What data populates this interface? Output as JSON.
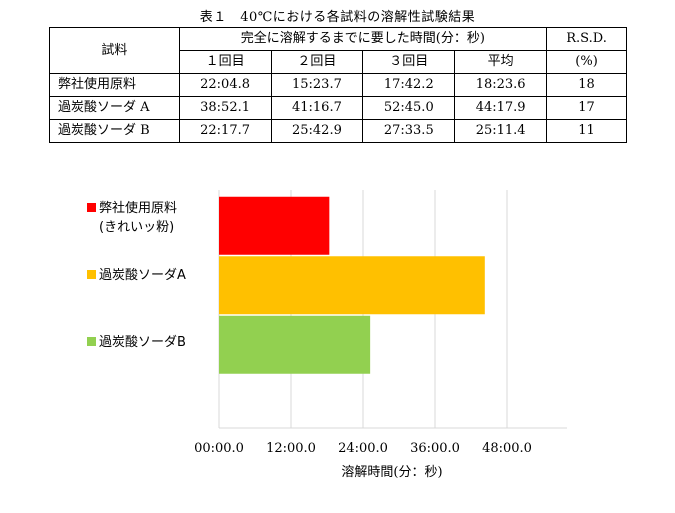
{
  "table": {
    "caption": "表１　40℃における各試料の溶解性試験結果",
    "header": {
      "sample_label": "試料",
      "time_group_label": "完全に溶解するまでに要した時間(分：秒)",
      "rsd_label": "R.S.D.",
      "rsd_unit": "(%)",
      "columns": [
        "１回目",
        "２回目",
        "３回目",
        "平均"
      ]
    },
    "rows": [
      {
        "sample": "弊社使用原料",
        "values": [
          "22:04.8",
          "15:23.7",
          "17:42.2",
          "18:23.6"
        ],
        "rsd": "18"
      },
      {
        "sample": "過炭酸ソーダ A",
        "values": [
          "38:52.1",
          "41:16.7",
          "52:45.0",
          "44:17.9"
        ],
        "rsd": "17"
      },
      {
        "sample": "過炭酸ソーダ B",
        "values": [
          "22:17.7",
          "25:42.9",
          "27:33.5",
          "25:11.4"
        ],
        "rsd": "11"
      }
    ]
  },
  "chart_data": {
    "type": "bar",
    "orientation": "horizontal",
    "categories": [
      "弊社使用原料 (きれいッ粉)",
      "過炭酸ソーダA",
      "過炭酸ソーダB"
    ],
    "series": [
      {
        "name": "弊社使用原料 (きれいッ粉)",
        "value_minutes": 18.39,
        "color": "#ff0000"
      },
      {
        "name": "過炭酸ソーダA",
        "value_minutes": 44.3,
        "color": "#ffc000"
      },
      {
        "name": "過炭酸ソーダB",
        "value_minutes": 25.19,
        "color": "#92d050"
      }
    ],
    "legend": [
      {
        "lines": [
          "弊社使用原料",
          "(きれいッ粉)"
        ],
        "color": "#ff0000"
      },
      {
        "lines": [
          "過炭酸ソーダA"
        ],
        "color": "#ffc000"
      },
      {
        "lines": [
          "過炭酸ソーダB"
        ],
        "color": "#92d050"
      }
    ],
    "xlim_minutes": [
      0,
      58
    ],
    "x_ticks": [
      {
        "value": 0,
        "label": "00:00.0"
      },
      {
        "value": 12,
        "label": "12:00.0"
      },
      {
        "value": 24,
        "label": "24:00.0"
      },
      {
        "value": 36,
        "label": "36:00.0"
      },
      {
        "value": 48,
        "label": "48:00.0"
      }
    ],
    "xlabel": "溶解時間(分：秒)",
    "ylabel": "",
    "grid": "vertical",
    "legend_position": "left"
  }
}
